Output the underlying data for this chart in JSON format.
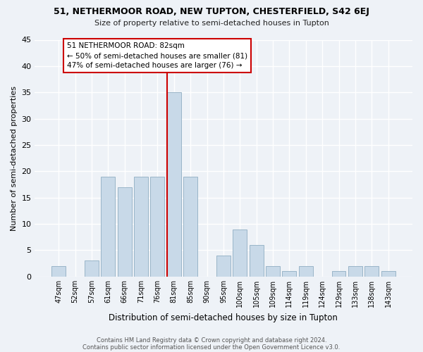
{
  "title_line1": "51, NETHERMOOR ROAD, NEW TUPTON, CHESTERFIELD, S42 6EJ",
  "title_line2": "Size of property relative to semi-detached houses in Tupton",
  "xlabel": "Distribution of semi-detached houses by size in Tupton",
  "ylabel": "Number of semi-detached properties",
  "footer_line1": "Contains HM Land Registry data © Crown copyright and database right 2024.",
  "footer_line2": "Contains public sector information licensed under the Open Government Licence v3.0.",
  "bar_labels": [
    "47sqm",
    "52sqm",
    "57sqm",
    "61sqm",
    "66sqm",
    "71sqm",
    "76sqm",
    "81sqm",
    "85sqm",
    "90sqm",
    "95sqm",
    "100sqm",
    "105sqm",
    "109sqm",
    "114sqm",
    "119sqm",
    "124sqm",
    "129sqm",
    "133sqm",
    "138sqm",
    "143sqm"
  ],
  "bar_values": [
    2,
    0,
    3,
    19,
    17,
    19,
    19,
    35,
    19,
    0,
    4,
    9,
    6,
    2,
    1,
    2,
    0,
    1,
    2,
    2,
    1
  ],
  "bar_color": "#c8d9e8",
  "bar_edge_color": "#9ab5c8",
  "highlight_index": 7,
  "highlight_line_color": "#cc0000",
  "ylim": [
    0,
    45
  ],
  "yticks": [
    0,
    5,
    10,
    15,
    20,
    25,
    30,
    35,
    40,
    45
  ],
  "annotation_title": "51 NETHERMOOR ROAD: 82sqm",
  "annotation_line1": "← 50% of semi-detached houses are smaller (81)",
  "annotation_line2": "47% of semi-detached houses are larger (76) →",
  "annotation_box_color": "#ffffff",
  "annotation_box_edge": "#cc0000",
  "background_color": "#eef2f7"
}
